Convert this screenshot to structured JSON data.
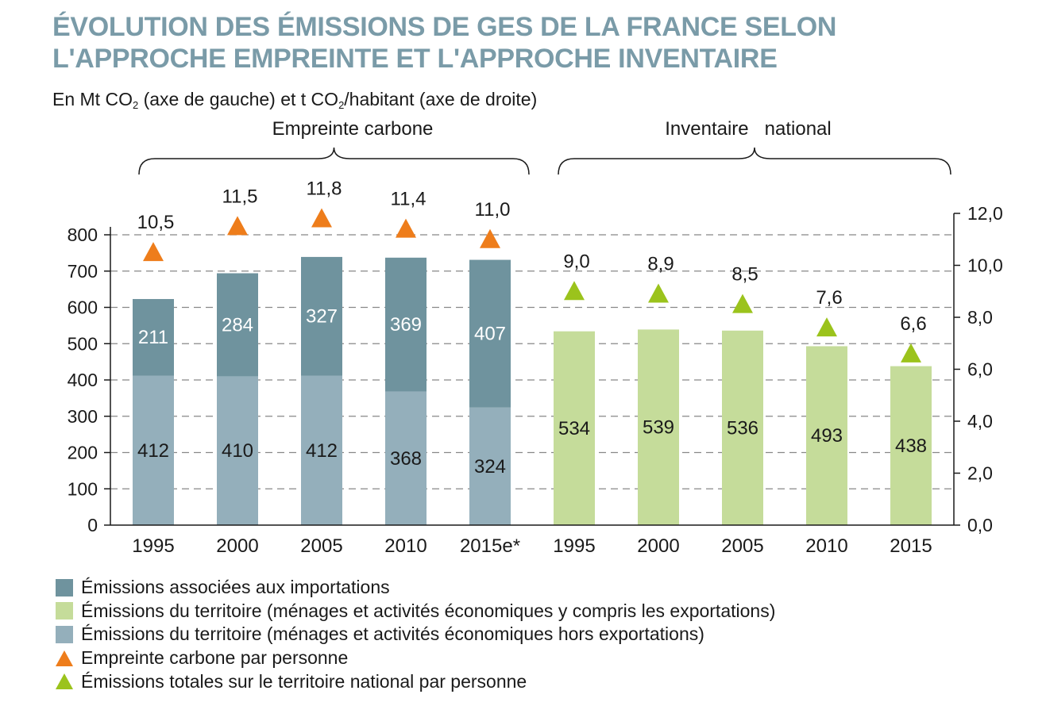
{
  "title_line1": "ÉVOLUTION DES ÉMISSIONS DE GES DE LA FRANCE SELON",
  "title_line2": "L'APPROCHE EMPREINTE ET L'APPROCHE INVENTAIRE",
  "subtitle": {
    "part1": "En Mt CO",
    "sub1": "2",
    "part2": " (axe de gauche) et t CO",
    "sub2": "2",
    "part3": "/habitant (axe de droite)"
  },
  "colors": {
    "imports": "#6f939e",
    "territory_incl_exports": "#c5dc9a",
    "territory_excl_exports": "#94afbb",
    "footprint_per_person": "#ee7d1b",
    "territory_per_person": "#9bc31c",
    "grid": "#888888"
  },
  "chart_data": {
    "type": "bar",
    "groups": [
      {
        "label": "Empreinte carbone",
        "categories": [
          "1995",
          "2000",
          "2005",
          "2010",
          "2015e*"
        ]
      },
      {
        "label": "Inventaire   national",
        "categories": [
          "1995",
          "2000",
          "2005",
          "2010",
          "2015"
        ]
      }
    ],
    "categories": [
      "1995",
      "2000",
      "2005",
      "2010",
      "2015e*",
      "1995",
      "2000",
      "2005",
      "2010",
      "2015"
    ],
    "series": [
      {
        "name": "Émissions du territoire (ménages et activités économiques hors exportations)",
        "type": "stacked-bar",
        "axis": "left",
        "color_key": "territory_excl_exports",
        "values": [
          412,
          410,
          412,
          368,
          324,
          null,
          null,
          null,
          null,
          null
        ]
      },
      {
        "name": "Émissions associées aux importations",
        "type": "stacked-bar",
        "axis": "left",
        "color_key": "imports",
        "values": [
          211,
          284,
          327,
          369,
          407,
          null,
          null,
          null,
          null,
          null
        ]
      },
      {
        "name": "Émissions du territoire (ménages et activités économiques y compris les exportations)",
        "type": "bar",
        "axis": "left",
        "color_key": "territory_incl_exports",
        "values": [
          null,
          null,
          null,
          null,
          null,
          534,
          539,
          536,
          493,
          438
        ]
      },
      {
        "name": "Empreinte carbone par personne",
        "type": "triangle-marker",
        "axis": "right",
        "color_key": "footprint_per_person",
        "values": [
          10.5,
          11.5,
          11.8,
          11.4,
          11.0,
          null,
          null,
          null,
          null,
          null
        ],
        "labels": [
          "10,5",
          "11,5",
          "11,8",
          "11,4",
          "11,0",
          null,
          null,
          null,
          null,
          null
        ]
      },
      {
        "name": "Émissions totales sur le territoire national par personne",
        "type": "triangle-marker",
        "axis": "right",
        "color_key": "territory_per_person",
        "values": [
          null,
          null,
          null,
          null,
          null,
          9.0,
          8.9,
          8.5,
          7.6,
          6.6
        ],
        "labels": [
          null,
          null,
          null,
          null,
          null,
          "9,0",
          "8,9",
          "8,5",
          "7,6",
          "6,6"
        ]
      }
    ],
    "y_left": {
      "min": 0,
      "max": 800,
      "ticks": [
        0,
        100,
        200,
        300,
        400,
        500,
        600,
        700,
        800
      ],
      "tick_labels": [
        "0",
        "100",
        "200",
        "300",
        "400",
        "500",
        "600",
        "700",
        "800"
      ]
    },
    "y_right": {
      "min": 0,
      "max": 12,
      "ticks": [
        0,
        2,
        4,
        6,
        8,
        10,
        12
      ],
      "tick_labels": [
        "0,0",
        "2,0",
        "4,0",
        "6,0",
        "8,0",
        "10,0",
        "12,0"
      ]
    },
    "grid": "dashed-horizontal",
    "legend_placement": "bottom"
  }
}
